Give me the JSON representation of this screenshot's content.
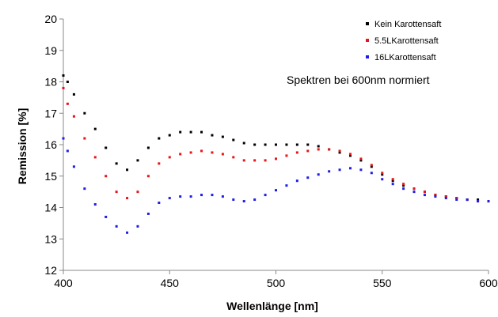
{
  "chart_data": {
    "type": "scatter",
    "title": "",
    "xlabel": "Wellenlänge [nm]",
    "ylabel": "Remission [%]",
    "xlim": [
      400,
      600
    ],
    "ylim": [
      12,
      20
    ],
    "xticks": [
      400,
      450,
      500,
      550,
      600
    ],
    "yticks": [
      12,
      13,
      14,
      15,
      16,
      17,
      18,
      19,
      20
    ],
    "grid": false,
    "legend_position": "top-right",
    "annotation": "Spektren bei 600nm normiert",
    "series": [
      {
        "name": "Kein Karottensaft",
        "color": "#000000",
        "x": [
          400,
          402,
          405,
          410,
          415,
          420,
          425,
          430,
          435,
          440,
          445,
          450,
          455,
          460,
          465,
          470,
          475,
          480,
          485,
          490,
          495,
          500,
          505,
          510,
          515,
          520,
          525,
          530,
          535,
          540,
          545,
          550,
          555,
          560,
          565,
          570,
          575,
          580,
          585,
          590,
          595,
          600
        ],
        "y": [
          18.2,
          18.0,
          17.6,
          17.0,
          16.5,
          15.9,
          15.4,
          15.2,
          15.5,
          15.9,
          16.2,
          16.3,
          16.4,
          16.4,
          16.4,
          16.3,
          16.25,
          16.15,
          16.05,
          16.0,
          16.0,
          16.0,
          16.0,
          16.0,
          16.0,
          15.95,
          15.85,
          15.75,
          15.65,
          15.5,
          15.3,
          15.05,
          14.85,
          14.7,
          14.6,
          14.5,
          14.4,
          14.35,
          14.3,
          14.25,
          14.25,
          14.2
        ]
      },
      {
        "name": "5.5LKarottensaft",
        "color": "#e8141a",
        "x": [
          400,
          402,
          405,
          410,
          415,
          420,
          425,
          430,
          435,
          440,
          445,
          450,
          455,
          460,
          465,
          470,
          475,
          480,
          485,
          490,
          495,
          500,
          505,
          510,
          515,
          520,
          525,
          530,
          535,
          540,
          545,
          550,
          555,
          560,
          565,
          570,
          575,
          580,
          585,
          590,
          595,
          600
        ],
        "y": [
          17.8,
          17.3,
          16.9,
          16.2,
          15.6,
          15.0,
          14.5,
          14.3,
          14.5,
          15.0,
          15.4,
          15.6,
          15.7,
          15.75,
          15.8,
          15.75,
          15.7,
          15.6,
          15.5,
          15.5,
          15.5,
          15.55,
          15.65,
          15.75,
          15.8,
          15.85,
          15.85,
          15.8,
          15.7,
          15.55,
          15.35,
          15.1,
          14.9,
          14.75,
          14.6,
          14.5,
          14.4,
          14.35,
          14.3,
          14.25,
          14.2,
          14.2
        ]
      },
      {
        "name": "16LKarottensaft",
        "color": "#1e1ee6",
        "x": [
          400,
          402,
          405,
          410,
          415,
          420,
          425,
          430,
          435,
          440,
          445,
          450,
          455,
          460,
          465,
          470,
          475,
          480,
          485,
          490,
          495,
          500,
          505,
          510,
          515,
          520,
          525,
          530,
          535,
          540,
          545,
          550,
          555,
          560,
          565,
          570,
          575,
          580,
          585,
          590,
          595,
          600
        ],
        "y": [
          16.2,
          15.8,
          15.3,
          14.6,
          14.1,
          13.7,
          13.4,
          13.2,
          13.4,
          13.8,
          14.15,
          14.3,
          14.35,
          14.35,
          14.4,
          14.4,
          14.35,
          14.25,
          14.2,
          14.25,
          14.4,
          14.55,
          14.7,
          14.85,
          14.95,
          15.05,
          15.15,
          15.2,
          15.25,
          15.2,
          15.1,
          14.9,
          14.75,
          14.6,
          14.5,
          14.4,
          14.35,
          14.3,
          14.25,
          14.25,
          14.2,
          14.2
        ]
      }
    ]
  }
}
